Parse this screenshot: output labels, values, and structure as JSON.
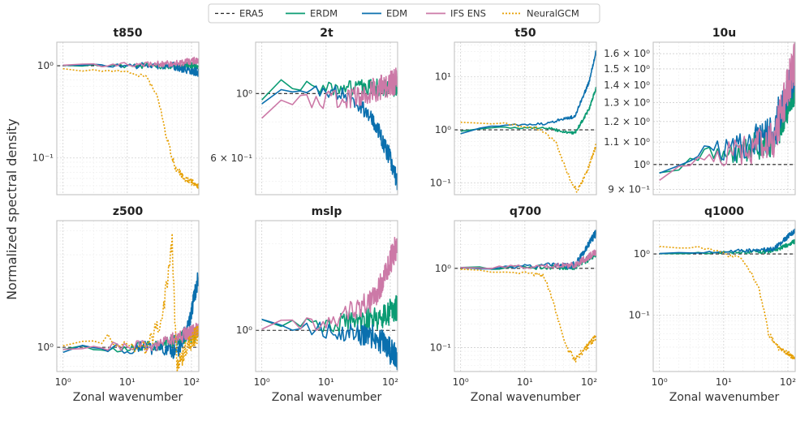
{
  "legend": {
    "entries": [
      {
        "name": "ERA5",
        "color": "#222222",
        "dash": "4,3"
      },
      {
        "name": "ERDM",
        "color": "#0a9b73",
        "dash": ""
      },
      {
        "name": "EDM",
        "color": "#0a6fae",
        "dash": ""
      },
      {
        "name": "IFS ENS",
        "color": "#cc79a7",
        "dash": ""
      },
      {
        "name": "NeuralGCM",
        "color": "#e69f00",
        "dash": "2,2"
      }
    ]
  },
  "ylabel": "Normalized spectral density",
  "xlabel": "Zonal wavenumber",
  "chart_data": [
    {
      "type": "line",
      "title": "t850",
      "xscale": "log",
      "yscale": "log",
      "xlim": [
        0.8,
        130
      ],
      "ylim": [
        0.04,
        1.8
      ],
      "xticks": [
        {
          "v": 1,
          "label": "10⁰"
        },
        {
          "v": 10,
          "label": "10¹"
        },
        {
          "v": 100,
          "label": "10²"
        }
      ],
      "yticks": [
        {
          "v": 1,
          "label": "10⁰"
        },
        {
          "v": 0.1,
          "label": "10⁻¹"
        }
      ],
      "xticklabels_visible": false,
      "ylabel_visible": true,
      "series": [
        {
          "name": "ERDM",
          "profile": [
            [
              1,
              1
            ],
            [
              100,
              1
            ],
            [
              128,
              1
            ]
          ],
          "noise": 0.06
        },
        {
          "name": "EDM",
          "profile": [
            [
              1,
              1
            ],
            [
              50,
              1
            ],
            [
              128,
              0.85
            ]
          ],
          "noise": 0.07
        },
        {
          "name": "IFS ENS",
          "profile": [
            [
              1,
              1
            ],
            [
              60,
              1.05
            ],
            [
              128,
              1.15
            ]
          ],
          "noise": 0.06
        },
        {
          "name": "NeuralGCM",
          "profile": [
            [
              1,
              0.92
            ],
            [
              3,
              0.88
            ],
            [
              10,
              0.88
            ],
            [
              20,
              0.75
            ],
            [
              30,
              0.45
            ],
            [
              40,
              0.18
            ],
            [
              55,
              0.08
            ],
            [
              80,
              0.06
            ],
            [
              128,
              0.05
            ]
          ],
          "noise": 0.05
        }
      ]
    },
    {
      "type": "line",
      "title": "2t",
      "xscale": "log",
      "yscale": "log",
      "xlim": [
        0.8,
        130
      ],
      "ylim": [
        0.45,
        1.5
      ],
      "xticks": [
        {
          "v": 1,
          "label": "10⁰"
        },
        {
          "v": 10,
          "label": "10¹"
        },
        {
          "v": 100,
          "label": "10²"
        }
      ],
      "yticks": [
        {
          "v": 1,
          "label": "10⁰"
        },
        {
          "v": 0.6,
          "label": "6 × 10⁻¹"
        }
      ],
      "xticklabels_visible": false,
      "ylabel_visible": false,
      "series": [
        {
          "name": "ERDM",
          "profile": [
            [
              1,
              0.95
            ],
            [
              2,
              1.08
            ],
            [
              10,
              1.04
            ],
            [
              128,
              1.05
            ]
          ],
          "noise": 0.05
        },
        {
          "name": "EDM",
          "profile": [
            [
              1,
              0.92
            ],
            [
              2,
              1.05
            ],
            [
              20,
              1
            ],
            [
              50,
              0.85
            ],
            [
              100,
              0.6
            ],
            [
              128,
              0.5
            ]
          ],
          "noise": 0.05
        },
        {
          "name": "IFS ENS",
          "profile": [
            [
              1,
              0.82
            ],
            [
              2,
              0.95
            ],
            [
              20,
              0.95
            ],
            [
              128,
              1.1
            ]
          ],
          "noise": 0.07
        },
        {
          "name": "NeuralGCM",
          "profile": [],
          "noise": 0
        }
      ]
    },
    {
      "type": "line",
      "title": "t50",
      "xscale": "log",
      "yscale": "log",
      "xlim": [
        0.8,
        130
      ],
      "ylim": [
        0.06,
        45
      ],
      "xticks": [
        {
          "v": 1,
          "label": "10⁰"
        },
        {
          "v": 10,
          "label": "10¹"
        },
        {
          "v": 100,
          "label": "10²"
        }
      ],
      "yticks": [
        {
          "v": 10,
          "label": "10¹"
        },
        {
          "v": 1,
          "label": "10⁰"
        },
        {
          "v": 0.1,
          "label": "10⁻¹"
        }
      ],
      "xticklabels_visible": false,
      "ylabel_visible": false,
      "series": [
        {
          "name": "ERDM",
          "profile": [
            [
              1,
              0.95
            ],
            [
              3,
              1.1
            ],
            [
              20,
              1.1
            ],
            [
              60,
              0.85
            ],
            [
              100,
              2.5
            ],
            [
              128,
              6
            ]
          ],
          "noise": 0.05
        },
        {
          "name": "EDM",
          "profile": [
            [
              1,
              0.85
            ],
            [
              3,
              1.2
            ],
            [
              20,
              1.3
            ],
            [
              60,
              1.8
            ],
            [
              100,
              8
            ],
            [
              128,
              30
            ]
          ],
          "noise": 0.05
        },
        {
          "name": "IFS ENS",
          "profile": [],
          "noise": 0
        },
        {
          "name": "NeuralGCM",
          "profile": [
            [
              1,
              1.4
            ],
            [
              5,
              1.3
            ],
            [
              15,
              1.1
            ],
            [
              30,
              0.6
            ],
            [
              50,
              0.12
            ],
            [
              65,
              0.07
            ],
            [
              90,
              0.15
            ],
            [
              128,
              0.5
            ]
          ],
          "noise": 0.06
        }
      ]
    },
    {
      "type": "line",
      "title": "10u",
      "xscale": "log",
      "yscale": "log",
      "xlim": [
        0.8,
        130
      ],
      "ylim": [
        0.88,
        1.68
      ],
      "xticks": [
        {
          "v": 1,
          "label": "10⁰"
        },
        {
          "v": 10,
          "label": "10¹"
        },
        {
          "v": 100,
          "label": "10²"
        }
      ],
      "yticks": [
        {
          "v": 1.6,
          "label": "1.6 × 10⁰"
        },
        {
          "v": 1.5,
          "label": "1.5 × 10⁰"
        },
        {
          "v": 1.4,
          "label": "1.4 × 10⁰"
        },
        {
          "v": 1.3,
          "label": "1.3 × 10⁰"
        },
        {
          "v": 1.2,
          "label": "1.2 × 10⁰"
        },
        {
          "v": 1.1,
          "label": "1.1 × 10⁰"
        },
        {
          "v": 1,
          "label": "10⁰"
        },
        {
          "v": 0.9,
          "label": "9 × 10⁻¹"
        }
      ],
      "xticklabels_visible": false,
      "ylabel_visible": false,
      "series": [
        {
          "name": "ERDM",
          "profile": [
            [
              1,
              0.98
            ],
            [
              10,
              1.05
            ],
            [
              60,
              1.1
            ],
            [
              128,
              1.4
            ]
          ],
          "noise": 0.05
        },
        {
          "name": "EDM",
          "profile": [
            [
              1,
              0.98
            ],
            [
              10,
              1.06
            ],
            [
              60,
              1.15
            ],
            [
              128,
              1.5
            ]
          ],
          "noise": 0.06
        },
        {
          "name": "IFS ENS",
          "profile": [
            [
              1,
              0.95
            ],
            [
              10,
              1.05
            ],
            [
              60,
              1.1
            ],
            [
              128,
              1.55
            ]
          ],
          "noise": 0.06
        },
        {
          "name": "NeuralGCM",
          "profile": [],
          "noise": 0
        }
      ]
    },
    {
      "type": "line",
      "title": "z500",
      "xscale": "log",
      "yscale": "log",
      "xlim": [
        0.8,
        130
      ],
      "ylim": [
        0.75,
        4.5
      ],
      "xticks": [
        {
          "v": 1,
          "label": "10⁰"
        },
        {
          "v": 10,
          "label": "10¹"
        },
        {
          "v": 100,
          "label": "10²"
        }
      ],
      "yticks": [
        {
          "v": 1,
          "label": "10⁰"
        }
      ],
      "xticklabels_visible": true,
      "ylabel_visible": true,
      "series": [
        {
          "name": "ERDM",
          "profile": [
            [
              1,
              1
            ],
            [
              30,
              1
            ],
            [
              128,
              1.2
            ]
          ],
          "noise": 0.06
        },
        {
          "name": "EDM",
          "profile": [
            [
              1,
              0.97
            ],
            [
              30,
              1
            ],
            [
              60,
              0.95
            ],
            [
              90,
              1.3
            ],
            [
              128,
              2.3
            ]
          ],
          "noise": 0.07
        },
        {
          "name": "IFS ENS",
          "profile": [
            [
              1,
              1
            ],
            [
              30,
              1.02
            ],
            [
              128,
              1.25
            ]
          ],
          "noise": 0.06
        },
        {
          "name": "NeuralGCM",
          "profile": [
            [
              1,
              1.05
            ],
            [
              5,
              1.1
            ],
            [
              20,
              1
            ],
            [
              35,
              1.4
            ],
            [
              50,
              3.5
            ],
            [
              56,
              1.2
            ],
            [
              60,
              0.8
            ],
            [
              90,
              1.05
            ],
            [
              128,
              1.2
            ]
          ],
          "noise": 0.08
        }
      ]
    },
    {
      "type": "line",
      "title": "mslp",
      "xscale": "log",
      "yscale": "log",
      "xlim": [
        0.8,
        130
      ],
      "ylim": [
        0.72,
        2.4
      ],
      "xticks": [
        {
          "v": 1,
          "label": "10⁰"
        },
        {
          "v": 10,
          "label": "10¹"
        },
        {
          "v": 100,
          "label": "10²"
        }
      ],
      "yticks": [
        {
          "v": 1,
          "label": "10⁰"
        }
      ],
      "xticklabels_visible": true,
      "ylabel_visible": false,
      "series": [
        {
          "name": "ERDM",
          "profile": [
            [
              1,
              1.05
            ],
            [
              10,
              1.05
            ],
            [
              60,
              1.1
            ],
            [
              128,
              1.2
            ]
          ],
          "noise": 0.07
        },
        {
          "name": "EDM",
          "profile": [
            [
              1,
              1.05
            ],
            [
              10,
              1.0
            ],
            [
              60,
              0.95
            ],
            [
              128,
              0.8
            ]
          ],
          "noise": 0.07
        },
        {
          "name": "IFS ENS",
          "profile": [
            [
              1,
              1.05
            ],
            [
              10,
              1.05
            ],
            [
              60,
              1.3
            ],
            [
              128,
              2
            ]
          ],
          "noise": 0.07
        },
        {
          "name": "NeuralGCM",
          "profile": [],
          "noise": 0
        }
      ]
    },
    {
      "type": "line",
      "title": "q700",
      "xscale": "log",
      "yscale": "log",
      "xlim": [
        0.8,
        130
      ],
      "ylim": [
        0.05,
        4
      ],
      "xticks": [
        {
          "v": 1,
          "label": "10⁰"
        },
        {
          "v": 10,
          "label": "10¹"
        },
        {
          "v": 100,
          "label": "10²"
        }
      ],
      "yticks": [
        {
          "v": 1,
          "label": "10⁰"
        },
        {
          "v": 0.1,
          "label": "10⁻¹"
        }
      ],
      "xticklabels_visible": true,
      "ylabel_visible": false,
      "series": [
        {
          "name": "ERDM",
          "profile": [
            [
              1,
              1
            ],
            [
              60,
              1.05
            ],
            [
              128,
              1.5
            ]
          ],
          "noise": 0.06
        },
        {
          "name": "EDM",
          "profile": [
            [
              1,
              1
            ],
            [
              60,
              1.1
            ],
            [
              128,
              2.8
            ]
          ],
          "noise": 0.07
        },
        {
          "name": "IFS ENS",
          "profile": [
            [
              1,
              1
            ],
            [
              60,
              1.1
            ],
            [
              128,
              1.6
            ]
          ],
          "noise": 0.06
        },
        {
          "name": "NeuralGCM",
          "profile": [
            [
              1,
              0.95
            ],
            [
              10,
              0.9
            ],
            [
              20,
              0.8
            ],
            [
              30,
              0.3
            ],
            [
              45,
              0.1
            ],
            [
              60,
              0.07
            ],
            [
              90,
              0.1
            ],
            [
              128,
              0.14
            ]
          ],
          "noise": 0.06
        }
      ]
    },
    {
      "type": "line",
      "title": "q1000",
      "xscale": "log",
      "yscale": "log",
      "xlim": [
        0.8,
        130
      ],
      "ylim": [
        0.012,
        3.5
      ],
      "xticks": [
        {
          "v": 1,
          "label": "10⁰"
        },
        {
          "v": 10,
          "label": "10¹"
        },
        {
          "v": 100,
          "label": "10²"
        }
      ],
      "yticks": [
        {
          "v": 1,
          "label": "10⁰"
        },
        {
          "v": 0.1,
          "label": "10⁻¹"
        }
      ],
      "xticklabels_visible": true,
      "ylabel_visible": false,
      "series": [
        {
          "name": "ERDM",
          "profile": [
            [
              1,
              1
            ],
            [
              60,
              1.1
            ],
            [
              128,
              1.6
            ]
          ],
          "noise": 0.05
        },
        {
          "name": "EDM",
          "profile": [
            [
              1,
              1
            ],
            [
              60,
              1.2
            ],
            [
              128,
              2.4
            ]
          ],
          "noise": 0.06
        },
        {
          "name": "IFS ENS",
          "profile": [],
          "noise": 0
        },
        {
          "name": "NeuralGCM",
          "profile": [
            [
              1,
              1.3
            ],
            [
              5,
              1.25
            ],
            [
              20,
              0.8
            ],
            [
              35,
              0.3
            ],
            [
              50,
              0.05
            ],
            [
              70,
              0.03
            ],
            [
              128,
              0.02
            ]
          ],
          "noise": 0.07
        }
      ]
    }
  ]
}
